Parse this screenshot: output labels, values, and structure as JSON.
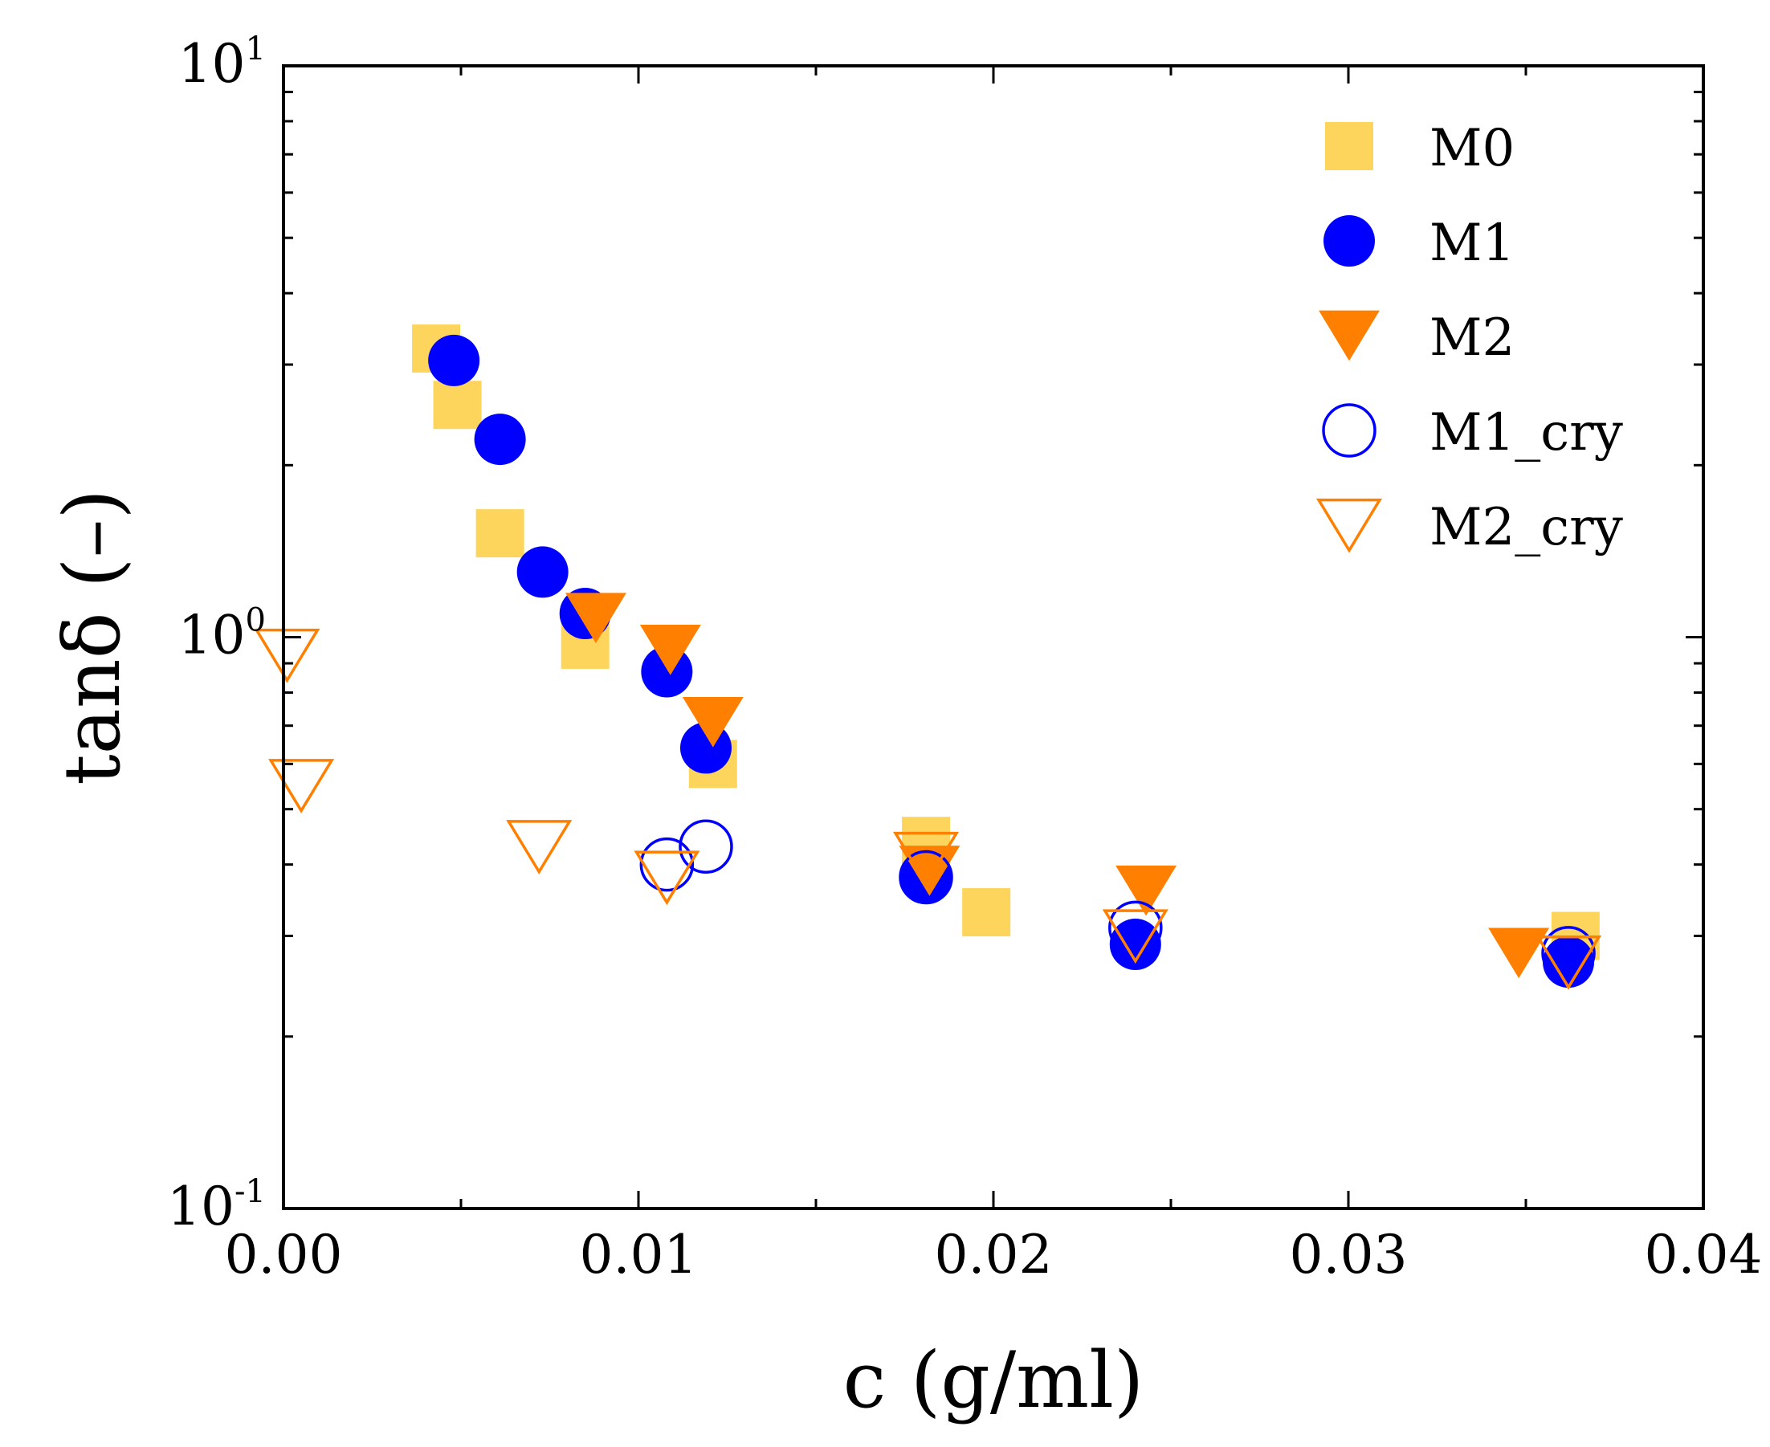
{
  "chart_data": {
    "type": "scatter",
    "title": "",
    "xlabel": "c (g/ml)",
    "ylabel": "tanδ (–)",
    "xlim": [
      0.0,
      0.04
    ],
    "ylim": [
      0.1,
      10
    ],
    "yscale": "log",
    "grid": false,
    "legend_position": "top-right",
    "x_ticks": [
      {
        "value": 0.0,
        "label": "0.00"
      },
      {
        "value": 0.01,
        "label": "0.01"
      },
      {
        "value": 0.02,
        "label": "0.02"
      },
      {
        "value": 0.03,
        "label": "0.03"
      },
      {
        "value": 0.04,
        "label": "0.04"
      }
    ],
    "y_ticks": [
      {
        "value": 0.1,
        "base": "10",
        "exp": "-1"
      },
      {
        "value": 1,
        "base": "10",
        "exp": "0"
      },
      {
        "value": 10,
        "base": "10",
        "exp": "1"
      }
    ],
    "series": [
      {
        "name": "M0",
        "marker": "square",
        "filled": true,
        "color": "#FDD55C",
        "points": [
          [
            0.0043,
            3.2
          ],
          [
            0.0049,
            2.55
          ],
          [
            0.0061,
            1.52
          ],
          [
            0.0085,
            0.97
          ],
          [
            0.0121,
            0.6
          ],
          [
            0.0181,
            0.44
          ],
          [
            0.0198,
            0.33
          ],
          [
            0.0364,
            0.3
          ]
        ]
      },
      {
        "name": "M1",
        "marker": "circle",
        "filled": true,
        "color": "#0000FF",
        "points": [
          [
            0.0048,
            3.05
          ],
          [
            0.0061,
            2.22
          ],
          [
            0.0073,
            1.3
          ],
          [
            0.0085,
            1.1
          ],
          [
            0.0108,
            0.87
          ],
          [
            0.0119,
            0.64
          ],
          [
            0.0181,
            0.38
          ],
          [
            0.024,
            0.29
          ],
          [
            0.0362,
            0.27
          ]
        ]
      },
      {
        "name": "M2",
        "marker": "triangle-down",
        "filled": true,
        "color": "#FF8000",
        "points": [
          [
            0.0088,
            1.08
          ],
          [
            0.0109,
            0.95
          ],
          [
            0.0121,
            0.71
          ],
          [
            0.0182,
            0.39
          ],
          [
            0.0243,
            0.36
          ],
          [
            0.0348,
            0.28
          ]
        ]
      },
      {
        "name": "M1_cry",
        "marker": "circle",
        "filled": false,
        "color": "#0000FF",
        "points": [
          [
            0.0108,
            0.4
          ],
          [
            0.0119,
            0.43
          ],
          [
            0.0181,
            0.38
          ],
          [
            0.024,
            0.31
          ],
          [
            0.0362,
            0.28
          ]
        ]
      },
      {
        "name": "M2_cry",
        "marker": "triangle-down",
        "filled": false,
        "color": "#FF8000",
        "points": [
          [
            0.0001,
            0.93
          ],
          [
            0.0005,
            0.55
          ],
          [
            0.0072,
            0.43
          ],
          [
            0.0108,
            0.38
          ],
          [
            0.0181,
            0.41
          ],
          [
            0.024,
            0.3
          ],
          [
            0.0362,
            0.27
          ]
        ]
      }
    ]
  }
}
